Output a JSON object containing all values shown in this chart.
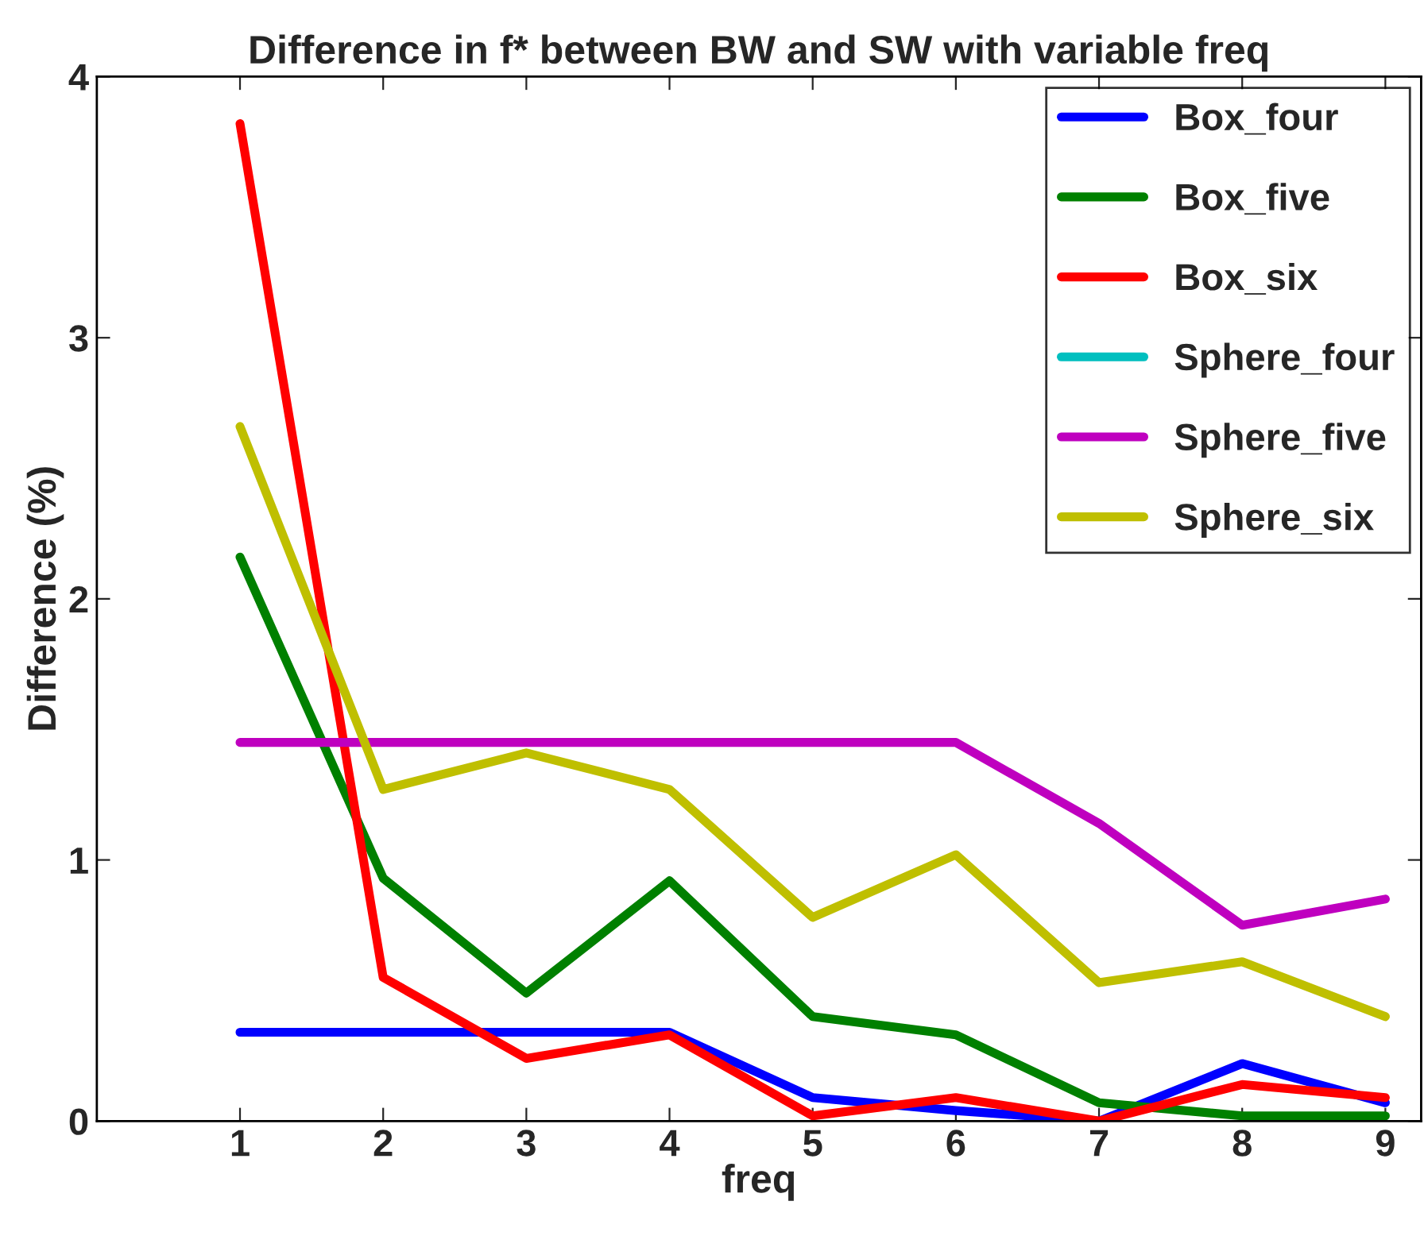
{
  "chart_data": {
    "type": "line",
    "title": "Difference in f* between BW and SW with variable freq",
    "xlabel": "freq",
    "ylabel": "Difference (%)",
    "x": [
      1,
      2,
      3,
      4,
      5,
      6,
      7,
      8,
      9
    ],
    "series": [
      {
        "name": "Box_four",
        "color": "#0000ff",
        "values": [
          0.34,
          0.34,
          0.34,
          0.34,
          0.09,
          0.04,
          0.0,
          0.22,
          0.07
        ]
      },
      {
        "name": "Box_five",
        "color": "#008000",
        "values": [
          2.16,
          0.93,
          0.49,
          0.92,
          0.4,
          0.33,
          0.07,
          0.02,
          0.02
        ]
      },
      {
        "name": "Box_six",
        "color": "#ff0000",
        "values": [
          3.82,
          0.55,
          0.24,
          0.33,
          0.02,
          0.09,
          0.0,
          0.14,
          0.09
        ]
      },
      {
        "name": "Sphere_four",
        "color": "#00bfbf",
        "values": [
          null,
          null,
          null,
          null,
          null,
          null,
          null,
          null,
          null
        ]
      },
      {
        "name": "Sphere_five",
        "color": "#bf00bf",
        "values": [
          1.45,
          1.45,
          1.45,
          1.45,
          1.45,
          1.45,
          1.14,
          0.75,
          0.85
        ]
      },
      {
        "name": "Sphere_six",
        "color": "#bfbf00",
        "values": [
          2.66,
          1.27,
          1.41,
          1.27,
          0.78,
          1.02,
          0.53,
          0.61,
          0.4
        ]
      }
    ],
    "xlim": [
      0,
      9.25
    ],
    "xticks": [
      1,
      2,
      3,
      4,
      5,
      6,
      7,
      8,
      9
    ],
    "ylim": [
      0,
      4
    ],
    "yticks": [
      0,
      1,
      2,
      3,
      4
    ],
    "grid": false,
    "legend": "top right",
    "marker": "none",
    "line_style": "solid"
  }
}
